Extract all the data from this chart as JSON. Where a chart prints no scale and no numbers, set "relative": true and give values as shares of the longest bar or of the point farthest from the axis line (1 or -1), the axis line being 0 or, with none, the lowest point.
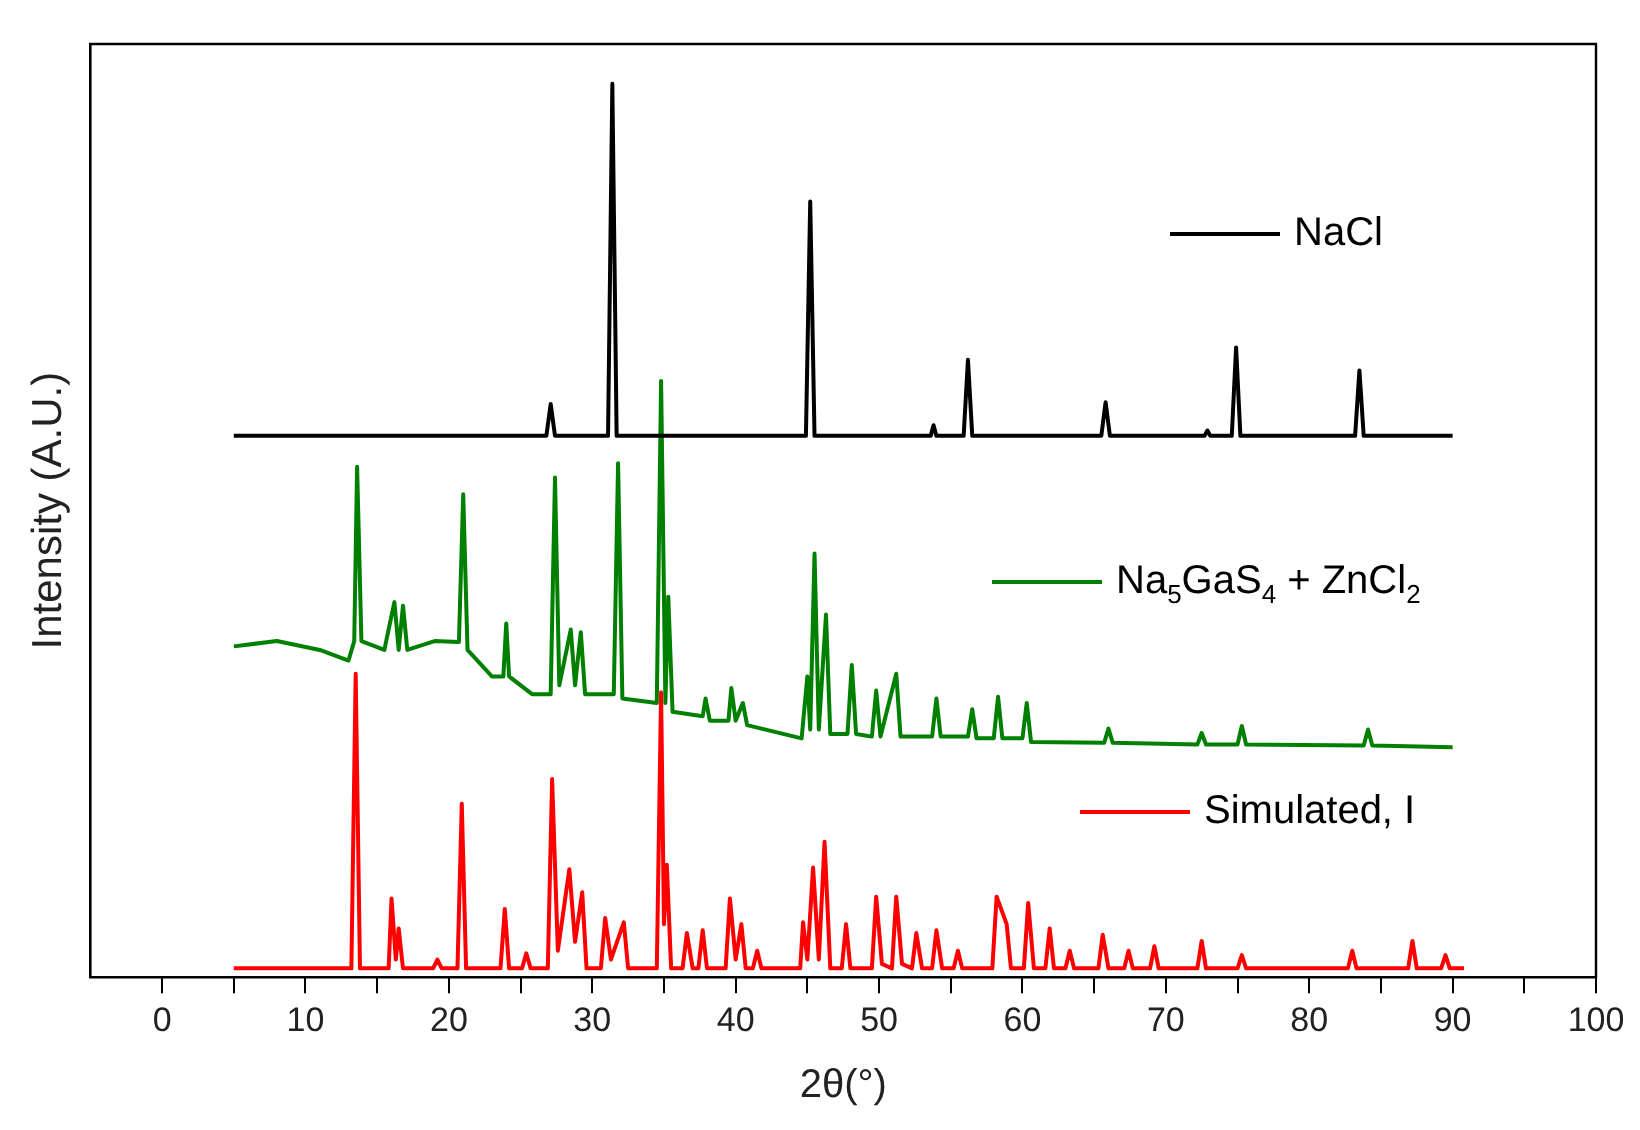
{
  "chart_data": {
    "type": "line",
    "relative": true,
    "xlabel": "2θ(°)",
    "ylabel": "Intensity (A.U.)",
    "xlim": [
      -5,
      100
    ],
    "xticks": [
      0,
      {
        "value": 5,
        "label": null
      },
      10,
      {
        "value": 15,
        "label": null
      },
      20,
      {
        "value": 25,
        "label": null
      },
      30,
      {
        "value": 35,
        "label": null
      },
      40,
      {
        "value": 45,
        "label": null
      },
      50,
      {
        "value": 55,
        "label": null
      },
      60,
      {
        "value": 65,
        "label": null
      },
      70,
      {
        "value": 75,
        "label": null
      },
      80,
      {
        "value": 85,
        "label": null
      },
      90,
      {
        "value": 95,
        "label": null
      },
      100
    ],
    "tick_labels": "x",
    "grid": false,
    "legend": "right",
    "series": [
      {
        "name": "NaCl",
        "color": "#000000",
        "x": [
          5,
          26.8,
          27.1,
          27.4,
          31.1,
          31.4,
          31.7,
          44.9,
          45.2,
          45.5,
          53.6,
          53.8,
          54.0,
          55.9,
          56.2,
          56.5,
          65.5,
          65.8,
          66.1,
          72.7,
          72.9,
          73.1,
          74.6,
          74.9,
          75.2,
          83.2,
          83.5,
          83.8,
          90
        ],
        "values": [
          0.602,
          0.602,
          0.638,
          0.602,
          0.602,
          1,
          0.602,
          0.602,
          0.867,
          0.602,
          0.602,
          0.614,
          0.602,
          0.602,
          0.688,
          0.602,
          0.602,
          0.64,
          0.602,
          0.602,
          0.608,
          0.602,
          0.602,
          0.702,
          0.602,
          0.602,
          0.676,
          0.602,
          0.602
        ]
      },
      {
        "name": "Na$_{5}$GaS$_{4}$ + ZnCl$_{2}$",
        "color": "#008000",
        "x": [
          5,
          8,
          11,
          13,
          13.4,
          13.6,
          13.9,
          15.5,
          16.2,
          16.5,
          16.8,
          17.1,
          19,
          20.7,
          21.0,
          21.3,
          23,
          23.8,
          24.0,
          24.2,
          25.8,
          27.1,
          27.4,
          27.7,
          28.5,
          28.8,
          29.2,
          29.5,
          31.5,
          31.8,
          32.1,
          34.5,
          34.8,
          35.1,
          35.3,
          35.6,
          37.7,
          37.9,
          38.2,
          39.5,
          39.7,
          40.0,
          40.5,
          40.8,
          44.6,
          45.0,
          45.2,
          45.5,
          45.8,
          46.3,
          46.6,
          47.8,
          48.1,
          48.4,
          49.5,
          49.8,
          50.1,
          51.2,
          51.5,
          53.7,
          54.0,
          54.3,
          56.2,
          56.5,
          56.8,
          58.0,
          58.3,
          58.6,
          60.0,
          60.3,
          60.6,
          65.7,
          66.0,
          66.3,
          72.2,
          72.5,
          72.8,
          75.0,
          75.3,
          75.6,
          83.8,
          84.1,
          84.4,
          90
        ],
        "values": [
          0.364,
          0.37,
          0.36,
          0.348,
          0.37,
          0.567,
          0.37,
          0.36,
          0.414,
          0.36,
          0.41,
          0.36,
          0.37,
          0.369,
          0.536,
          0.36,
          0.33,
          0.33,
          0.39,
          0.33,
          0.31,
          0.31,
          0.555,
          0.32,
          0.383,
          0.32,
          0.38,
          0.31,
          0.31,
          0.571,
          0.305,
          0.3,
          0.664,
          0.3,
          0.42,
          0.29,
          0.285,
          0.305,
          0.28,
          0.28,
          0.317,
          0.28,
          0.3,
          0.275,
          0.26,
          0.33,
          0.27,
          0.469,
          0.27,
          0.4,
          0.265,
          0.265,
          0.343,
          0.265,
          0.262,
          0.314,
          0.262,
          0.333,
          0.262,
          0.262,
          0.305,
          0.262,
          0.262,
          0.293,
          0.26,
          0.26,
          0.307,
          0.26,
          0.26,
          0.3,
          0.256,
          0.255,
          0.271,
          0.255,
          0.253,
          0.266,
          0.253,
          0.253,
          0.274,
          0.253,
          0.252,
          0.27,
          0.252,
          0.25
        ]
      },
      {
        "name": "Simulated, I",
        "color": "#ff0000",
        "x": [
          5,
          13.2,
          13.5,
          13.8,
          15.8,
          16.0,
          16.3,
          16.5,
          16.8,
          18.9,
          19.2,
          19.5,
          20.6,
          20.9,
          21.2,
          23.6,
          23.9,
          24.2,
          25.1,
          25.4,
          25.7,
          26.9,
          27.2,
          27.6,
          28.4,
          28.8,
          29.3,
          29.6,
          30.6,
          30.9,
          31.3,
          32.2,
          32.5,
          34.5,
          34.8,
          35.0,
          35.2,
          35.5,
          36.3,
          36.6,
          37.0,
          37.4,
          37.7,
          38.0,
          39.3,
          39.6,
          40.0,
          40.4,
          40.7,
          41.2,
          41.5,
          41.8,
          44.5,
          44.7,
          45.0,
          45.4,
          45.8,
          46.2,
          46.6,
          47.4,
          47.7,
          48.0,
          49.5,
          49.8,
          50.2,
          50.9,
          51.2,
          51.6,
          52.3,
          52.6,
          53,
          53.7,
          54.0,
          54.4,
          55.2,
          55.5,
          55.8,
          57.9,
          58.2,
          58.9,
          59.2,
          60.1,
          60.4,
          60.8,
          61.6,
          61.9,
          62.2,
          63.0,
          63.3,
          63.6,
          65.3,
          65.6,
          66,
          67.1,
          67.4,
          67.7,
          68.9,
          69.2,
          69.5,
          72.2,
          72.5,
          72.8,
          75.0,
          75.3,
          75.6,
          82.7,
          83.0,
          83.3,
          86.9,
          87.2,
          87.5,
          89.2,
          89.5,
          89.8,
          90.8
        ],
        "values": [
          0,
          0,
          0.333,
          0,
          0,
          0.079,
          0.01,
          0.045,
          0,
          0,
          0.01,
          0,
          0,
          0.186,
          0,
          0,
          0.067,
          0,
          0,
          0.017,
          0,
          0,
          0.214,
          0.02,
          0.112,
          0.03,
          0.086,
          0,
          0,
          0.057,
          0.01,
          0.052,
          0,
          0,
          0.312,
          0.05,
          0.117,
          0,
          0,
          0.04,
          0,
          0,
          0.043,
          0,
          0,
          0.079,
          0.01,
          0.05,
          0,
          0,
          0.02,
          0,
          0,
          0.052,
          0.01,
          0.114,
          0.01,
          0.143,
          0,
          0,
          0.05,
          0,
          0,
          0.081,
          0.005,
          0,
          0.081,
          0.005,
          0,
          0.04,
          0,
          0,
          0.043,
          0,
          0,
          0.02,
          0,
          0,
          0.081,
          0.05,
          0,
          0,
          0.074,
          0,
          0,
          0.045,
          0,
          0,
          0.02,
          0,
          0,
          0.038,
          0,
          0,
          0.02,
          0,
          0,
          0.025,
          0,
          0,
          0.031,
          0,
          0,
          0.015,
          0,
          0,
          0.02,
          0,
          0,
          0.031,
          0,
          0,
          0.015,
          0,
          0
        ]
      }
    ]
  }
}
